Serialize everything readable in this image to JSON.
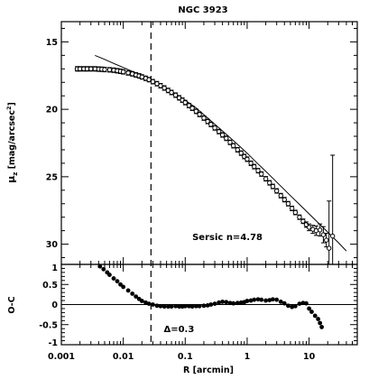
{
  "chart_data": {
    "type": "scatter",
    "title": "NGC 3923",
    "x_scale": "log",
    "xlim": [
      0.001,
      60
    ],
    "x_ticks": [
      "0.001",
      "0.01",
      "0.1",
      "1",
      "10"
    ],
    "x_tick_values": [
      0.001,
      0.01,
      0.1,
      1,
      10
    ],
    "xlabel": "R [arcmin]",
    "vline_x": 0.028,
    "panels": [
      {
        "name": "profile",
        "ylabel_main": "μ",
        "ylabel_sub": "z",
        "ylabel_rest": " [mag/arcsec",
        "ylabel_sup": "2",
        "ylabel_end": "]",
        "ylim": [
          31.5,
          13.5
        ],
        "inverted": true,
        "y_ticks": [
          "15",
          "20",
          "25",
          "30"
        ],
        "y_tick_values": [
          15,
          20,
          25,
          30
        ],
        "annotation": "Sersic n=4.78",
        "annotation_pos": [
          0.13,
          29.7
        ],
        "data": {
          "x": [
            0.0018,
            0.002,
            0.0023,
            0.0026,
            0.003,
            0.0035,
            0.004,
            0.0045,
            0.005,
            0.006,
            0.007,
            0.008,
            0.009,
            0.01,
            0.012,
            0.014,
            0.016,
            0.018,
            0.02,
            0.023,
            0.026,
            0.03,
            0.035,
            0.04,
            0.046,
            0.053,
            0.06,
            0.07,
            0.08,
            0.09,
            0.1,
            0.115,
            0.13,
            0.15,
            0.17,
            0.2,
            0.23,
            0.26,
            0.3,
            0.35,
            0.4,
            0.46,
            0.53,
            0.6,
            0.7,
            0.8,
            0.9,
            1.0,
            1.15,
            1.3,
            1.5,
            1.7,
            2.0,
            2.3,
            2.6,
            3.0,
            3.5,
            4.0,
            4.6,
            5.3,
            6.0,
            7.0,
            8.0,
            9.0,
            10,
            11.5,
            13,
            15,
            17,
            19,
            21,
            24
          ],
          "y": [
            17.0,
            17.0,
            17.0,
            17.0,
            17.0,
            17.0,
            17.02,
            17.03,
            17.05,
            17.07,
            17.1,
            17.14,
            17.18,
            17.22,
            17.3,
            17.37,
            17.45,
            17.52,
            17.6,
            17.7,
            17.8,
            17.95,
            18.1,
            18.25,
            18.42,
            18.6,
            18.75,
            18.95,
            19.15,
            19.32,
            19.5,
            19.72,
            19.92,
            20.15,
            20.38,
            20.65,
            20.9,
            21.12,
            21.38,
            21.65,
            21.9,
            22.15,
            22.45,
            22.7,
            23.0,
            23.25,
            23.5,
            23.7,
            24.0,
            24.25,
            24.55,
            24.8,
            25.15,
            25.45,
            25.72,
            26.05,
            26.4,
            26.7,
            27.0,
            27.35,
            27.65,
            28.0,
            28.3,
            28.55,
            28.75,
            28.9,
            29.0,
            28.95,
            29.3,
            29.7,
            30.3,
            29.4
          ],
          "err": [
            0,
            0,
            0,
            0,
            0,
            0,
            0,
            0,
            0,
            0,
            0,
            0,
            0,
            0,
            0,
            0,
            0,
            0,
            0,
            0,
            0,
            0,
            0,
            0,
            0,
            0,
            0,
            0,
            0,
            0,
            0,
            0,
            0,
            0,
            0,
            0,
            0,
            0,
            0,
            0,
            0,
            0,
            0,
            0,
            0,
            0,
            0,
            0,
            0,
            0,
            0,
            0,
            0,
            0,
            0,
            0,
            0,
            0,
            0,
            0,
            0.1,
            0.12,
            0.15,
            0.2,
            0.25,
            0.3,
            0.35,
            0.45,
            0.6,
            0.5,
            3.5,
            6.0
          ]
        },
        "model": {
          "x": [
            0.0035,
            0.005,
            0.007,
            0.01,
            0.015,
            0.02,
            0.03,
            0.05,
            0.07,
            0.1,
            0.15,
            0.2,
            0.3,
            0.5,
            0.7,
            1.0,
            1.5,
            2.0,
            3.0,
            5.0,
            7.0,
            10,
            15,
            20,
            30,
            40
          ],
          "y": [
            16.0,
            16.3,
            16.6,
            16.9,
            17.25,
            17.5,
            17.9,
            18.45,
            18.85,
            19.32,
            19.9,
            20.4,
            21.1,
            22.0,
            22.6,
            23.25,
            24.05,
            24.6,
            25.4,
            26.4,
            27.05,
            27.75,
            28.55,
            29.1,
            29.9,
            30.5
          ]
        }
      },
      {
        "name": "residual",
        "ylabel": "O-C",
        "ylim": [
          -1,
          1
        ],
        "y_ticks": [
          "1",
          "0.5",
          "0",
          "-0.5",
          "-1"
        ],
        "y_tick_values": [
          1,
          0.5,
          0,
          -0.5,
          -1
        ],
        "annotation": "Δ=0.3",
        "annotation_pos": [
          0.045,
          -0.68
        ],
        "hline_y": 0,
        "data": {
          "x": [
            0.0042,
            0.0048,
            0.0055,
            0.006,
            0.007,
            0.008,
            0.009,
            0.01,
            0.012,
            0.014,
            0.016,
            0.018,
            0.02,
            0.023,
            0.026,
            0.03,
            0.035,
            0.04,
            0.046,
            0.053,
            0.06,
            0.07,
            0.08,
            0.09,
            0.1,
            0.115,
            0.13,
            0.15,
            0.17,
            0.2,
            0.23,
            0.26,
            0.3,
            0.35,
            0.4,
            0.46,
            0.53,
            0.6,
            0.7,
            0.8,
            0.9,
            1.0,
            1.15,
            1.3,
            1.5,
            1.7,
            2.0,
            2.3,
            2.6,
            3.0,
            3.5,
            4.0,
            4.6,
            5.3,
            6.0,
            7.0,
            8.0,
            9.0,
            10,
            11,
            12.5,
            14,
            15,
            16
          ],
          "y": [
            0.95,
            0.88,
            0.8,
            0.74,
            0.65,
            0.58,
            0.5,
            0.44,
            0.35,
            0.27,
            0.2,
            0.14,
            0.09,
            0.05,
            0.02,
            0.0,
            -0.03,
            -0.04,
            -0.05,
            -0.05,
            -0.05,
            -0.04,
            -0.05,
            -0.05,
            -0.04,
            -0.04,
            -0.05,
            -0.04,
            -0.04,
            -0.03,
            -0.02,
            0.0,
            0.02,
            0.05,
            0.07,
            0.06,
            0.04,
            0.03,
            0.04,
            0.05,
            0.06,
            0.09,
            0.1,
            0.12,
            0.13,
            0.12,
            0.1,
            0.11,
            0.13,
            0.12,
            0.07,
            0.03,
            -0.03,
            -0.06,
            -0.04,
            0.02,
            0.04,
            0.03,
            -0.1,
            -0.18,
            -0.28,
            -0.36,
            -0.46,
            -0.56
          ]
        }
      }
    ]
  }
}
